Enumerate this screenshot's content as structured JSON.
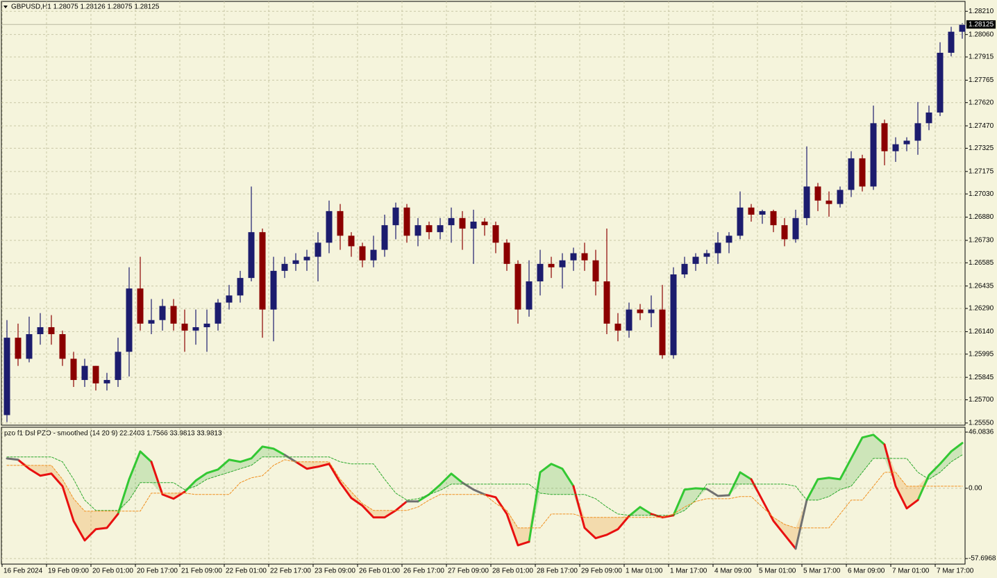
{
  "chart_data": [
    {
      "type": "candlestick",
      "title": "GBPUSD,H1  1.28075 1.28126 1.28075 1.28125",
      "categories": [
        "16 Feb 2024",
        null,
        null,
        null,
        "19 Feb 09:00",
        null,
        null,
        null,
        "20 Feb 01:00",
        null,
        null,
        null,
        "20 Feb 17:00",
        null,
        null,
        null,
        "21 Feb 09:00",
        null,
        null,
        null,
        "22 Feb 01:00",
        null,
        null,
        null,
        "22 Feb 17:00",
        null,
        null,
        null,
        "23 Feb 09:00",
        null,
        null,
        null,
        "26 Feb 01:00",
        null,
        null,
        null,
        "26 Feb 17:00",
        null,
        null,
        null,
        "27 Feb 09:00",
        null,
        null,
        null,
        "28 Feb 01:00",
        null,
        null,
        null,
        "28 Feb 17:00",
        null,
        null,
        null,
        "29 Feb 09:00",
        null,
        null,
        null,
        "1 Mar 01:00",
        null,
        null,
        null,
        "1 Mar 17:00",
        null,
        null,
        null,
        "4 Mar 09:00",
        null,
        null,
        null,
        "5 Mar 01:00",
        null,
        null,
        null,
        "5 Mar 17:00",
        null,
        null,
        null,
        "6 Mar 09:00",
        null,
        null,
        null,
        "7 Mar 01:00",
        null,
        null,
        null,
        "7 Mar 17:00",
        null,
        null
      ],
      "open": [
        1.25601,
        1.26101,
        1.25965,
        1.26124,
        1.26169,
        1.26124,
        1.25965,
        1.25828,
        1.25919,
        1.25806,
        1.25828,
        1.2601,
        1.26419,
        1.26192,
        1.26215,
        1.26306,
        1.26192,
        1.26147,
        1.26169,
        1.26192,
        1.26328,
        1.26374,
        1.26487,
        1.26783,
        1.26283,
        1.26533,
        1.26578,
        1.26601,
        1.26624,
        1.26715,
        1.26919,
        1.2676,
        1.26692,
        1.26601,
        1.26669,
        1.26828,
        1.26942,
        1.2676,
        1.26828,
        1.26783,
        1.26828,
        1.26874,
        1.26806,
        1.26851,
        1.26828,
        1.26715,
        1.26578,
        1.26283,
        1.26465,
        1.26578,
        1.26556,
        1.26601,
        1.26647,
        1.26601,
        1.26465,
        1.26192,
        1.26147,
        1.26283,
        1.2626,
        1.26283,
        1.25988,
        1.2651,
        1.26578,
        1.26624,
        1.26647,
        1.26715,
        1.2676,
        1.26942,
        1.26896,
        1.26919,
        1.26828,
        1.26737,
        1.26874,
        1.27078,
        1.26987,
        1.26965,
        1.27056,
        1.2726,
        1.27078,
        1.27487,
        1.27306,
        1.27351,
        1.27374,
        1.27487,
        1.27556,
        1.27942,
        1.28078
      ],
      "high": [
        1.26215,
        1.26192,
        1.26237,
        1.2626,
        1.26247,
        1.26147,
        1.2601,
        1.25965,
        1.25919,
        1.25874,
        1.26101,
        1.26556,
        1.26624,
        1.26351,
        1.26351,
        1.26351,
        1.26283,
        1.26283,
        1.26283,
        1.26351,
        1.26442,
        1.26533,
        1.27078,
        1.26806,
        1.26624,
        1.26624,
        1.26647,
        1.26669,
        1.26783,
        1.26987,
        1.26965,
        1.26783,
        1.26715,
        1.2676,
        1.26896,
        1.26974,
        1.26965,
        1.26874,
        1.26851,
        1.26874,
        1.26942,
        1.26919,
        1.26928,
        1.26874,
        1.26851,
        1.26737,
        1.26601,
        1.26601,
        1.26669,
        1.26624,
        1.26647,
        1.26683,
        1.26715,
        1.26669,
        1.26806,
        1.2626,
        1.26328,
        1.26319,
        1.26374,
        1.26442,
        1.26556,
        1.26624,
        1.26647,
        1.26669,
        1.26783,
        1.26783,
        1.27046,
        1.26965,
        1.26928,
        1.26928,
        1.26874,
        1.26928,
        1.27337,
        1.27101,
        1.27046,
        1.27078,
        1.27306,
        1.27283,
        1.27601,
        1.2751,
        1.27396,
        1.27396,
        1.27624,
        1.27601,
        1.2801,
        1.2811,
        1.28133
      ],
      "low": [
        1.25556,
        1.25919,
        1.25942,
        1.26056,
        1.26056,
        1.25919,
        1.25783,
        1.25783,
        1.2576,
        1.2576,
        1.25783,
        1.25851,
        1.26147,
        1.26124,
        1.26147,
        1.26147,
        1.2601,
        1.26056,
        1.2601,
        1.26147,
        1.26283,
        1.26328,
        1.26465,
        1.26101,
        1.26078,
        1.26487,
        1.26533,
        1.26533,
        1.26465,
        1.26647,
        1.26669,
        1.26624,
        1.26556,
        1.26556,
        1.26624,
        1.26737,
        1.26715,
        1.26692,
        1.26737,
        1.26737,
        1.26715,
        1.26669,
        1.26578,
        1.2676,
        1.26647,
        1.26533,
        1.26192,
        1.26237,
        1.26374,
        1.26487,
        1.26419,
        1.26533,
        1.26533,
        1.26374,
        1.26124,
        1.26078,
        1.26101,
        1.26215,
        1.26169,
        1.25965,
        1.25965,
        1.26487,
        1.26533,
        1.26578,
        1.26578,
        1.26647,
        1.26737,
        1.26851,
        1.26837,
        1.26783,
        1.26692,
        1.26715,
        1.26828,
        1.26919,
        1.26883,
        1.26942,
        1.2701,
        1.27046,
        1.27056,
        1.27215,
        1.27237,
        1.27306,
        1.27283,
        1.27442,
        1.27533,
        1.27919,
        1.28033
      ],
      "close": [
        1.26101,
        1.25965,
        1.26124,
        1.26169,
        1.26124,
        1.25965,
        1.25828,
        1.25919,
        1.25806,
        1.25828,
        1.2601,
        1.26419,
        1.26192,
        1.26215,
        1.26306,
        1.26192,
        1.26147,
        1.26169,
        1.26192,
        1.26328,
        1.26374,
        1.26487,
        1.26783,
        1.26283,
        1.26533,
        1.26578,
        1.26601,
        1.26624,
        1.26715,
        1.26919,
        1.2676,
        1.26692,
        1.26601,
        1.26669,
        1.26828,
        1.26942,
        1.2676,
        1.26828,
        1.26783,
        1.26828,
        1.26874,
        1.26806,
        1.26851,
        1.26828,
        1.26715,
        1.26578,
        1.26283,
        1.26465,
        1.26578,
        1.26556,
        1.26601,
        1.26647,
        1.26601,
        1.26465,
        1.26192,
        1.26147,
        1.26283,
        1.2626,
        1.26283,
        1.25988,
        1.2651,
        1.26578,
        1.26624,
        1.26647,
        1.26715,
        1.2676,
        1.26942,
        1.26896,
        1.26919,
        1.26828,
        1.26737,
        1.26874,
        1.27078,
        1.26987,
        1.26965,
        1.27056,
        1.2726,
        1.27078,
        1.27487,
        1.27306,
        1.27351,
        1.27374,
        1.27487,
        1.27556,
        1.27942,
        1.28078,
        1.28125
      ],
      "up_color": "#1c1c6e",
      "down_color": "#8b0000",
      "ylim": [
        1.25536,
        1.28274
      ],
      "yticks": [
        {
          "value": 1.2821,
          "label": "1.28210"
        },
        {
          "value": 1.2806,
          "label": "1.28060"
        },
        1.27915,
        1.27765,
        {
          "value": 1.2762,
          "label": "1.27620"
        },
        {
          "value": 1.2747,
          "label": "1.27470"
        },
        1.27325,
        1.27175,
        {
          "value": 1.2703,
          "label": "1.27030"
        },
        {
          "value": 1.2688,
          "label": "1.26880"
        },
        {
          "value": 1.2673,
          "label": "1.26730"
        },
        1.26585,
        1.26435,
        {
          "value": 1.2629,
          "label": "1.26290"
        },
        {
          "value": 1.2614,
          "label": "1.26140"
        },
        1.25995,
        1.25845,
        {
          "value": 1.257,
          "label": "1.25700"
        },
        {
          "value": 1.2555,
          "label": "1.25550"
        }
      ],
      "grid": true
    },
    {
      "type": "line",
      "title": "pzo f1 Dsl PZO - smoothed (14 20 9) 22.2403 1.7566 33.9813 33.9813",
      "series": [
        {
          "color": "#33c833",
          "values": [
            null,
            null,
            null,
            null,
            null,
            null,
            null,
            null,
            null,
            null,
            -21.1,
            7.4,
            30.2,
            21.7,
            null,
            null,
            -2.9,
            6.3,
            12.5,
            15.4,
            23.4,
            21.7,
            24.5,
            34.2,
            32.5,
            27.4,
            null,
            null,
            null,
            null,
            null,
            null,
            null,
            null,
            null,
            null,
            null,
            -10.8,
            -5.1,
            2.9,
            12,
            4.6,
            null,
            null,
            null,
            null,
            null,
            -43.9,
            13.1,
            20,
            16,
            1.7,
            null,
            null,
            null,
            null,
            -22.8,
            -15.4,
            -21.1,
            null,
            -22.2,
            -1.1,
            0,
            -0.6,
            null,
            -5.7,
            13.1,
            7.4,
            null,
            null,
            null,
            null,
            -9.7,
            7.4,
            8.6,
            7.4,
            24.5,
            41.6,
            43.9,
            35.9,
            null,
            null,
            -9.7,
            10.8,
            20,
            30.2,
            37.1
          ]
        },
        {
          "color": "#e81010",
          "values": [
            null,
            23.4,
            16,
            10.3,
            12,
            1.7,
            -26.8,
            -42.8,
            -33.6,
            -32.5,
            -21.1,
            null,
            null,
            21.7,
            -5.1,
            -8.6,
            -2.9,
            null,
            null,
            null,
            null,
            null,
            null,
            null,
            null,
            null,
            21.7,
            16,
            17.7,
            20,
            4.6,
            -8,
            -14.3,
            -23.9,
            -23.9,
            -18.2,
            -10.8,
            null,
            null,
            null,
            null,
            null,
            null,
            -5.1,
            -7.4,
            -21.1,
            -46.8,
            -43.9,
            null,
            null,
            null,
            1.7,
            -32.5,
            -41,
            -38.2,
            -33.6,
            -22.8,
            null,
            -21.1,
            -23.9,
            -22.2,
            null,
            null,
            null,
            null,
            null,
            null,
            7.4,
            -9.7,
            -26.8,
            -38.2,
            -49.6,
            null,
            null,
            null,
            null,
            null,
            null,
            null,
            35.9,
            1.7,
            -16.5,
            -9.7,
            null,
            null,
            null,
            null
          ]
        },
        {
          "color": "#707070",
          "values": [
            24.5,
            23.4,
            null,
            null,
            null,
            null,
            null,
            null,
            null,
            null,
            null,
            null,
            null,
            null,
            null,
            null,
            null,
            null,
            null,
            null,
            null,
            null,
            null,
            null,
            null,
            27.4,
            21.7,
            null,
            null,
            null,
            null,
            null,
            null,
            null,
            null,
            null,
            -10.8,
            -10.8,
            null,
            null,
            null,
            4.6,
            -1.1,
            -5.1,
            null,
            null,
            null,
            null,
            null,
            null,
            null,
            null,
            null,
            null,
            null,
            null,
            null,
            null,
            null,
            null,
            null,
            null,
            null,
            -0.6,
            -6.3,
            -5.7,
            null,
            null,
            null,
            null,
            null,
            -49.6,
            -9.7,
            null,
            null,
            null,
            null,
            null,
            null,
            null,
            null,
            null,
            null,
            null,
            null,
            null,
            null
          ]
        },
        {
          "color": "#2ca82c",
          "dash": true,
          "values": [
            25.7,
            25.7,
            25.7,
            25.7,
            25.7,
            21.7,
            7.4,
            -9.7,
            -18.2,
            -18.2,
            -18.2,
            -9.7,
            4.6,
            4.6,
            4.6,
            4.6,
            -1.1,
            1.7,
            7.4,
            10.3,
            13.1,
            16,
            18.8,
            25.7,
            25.7,
            25.7,
            25.7,
            25.7,
            25.7,
            25.7,
            21.7,
            20,
            20,
            20,
            7.4,
            -4,
            -9.7,
            -8.6,
            -5.1,
            -1.7,
            3.4,
            3.4,
            3.4,
            3.4,
            3.4,
            3.4,
            3.4,
            3.4,
            -4,
            -5.1,
            -5.1,
            -5.1,
            -5.1,
            -8.6,
            -15.4,
            -21.1,
            -22.2,
            -22.2,
            -22.2,
            -22.2,
            -22.2,
            -18.2,
            -9.7,
            3.4,
            3.4,
            3.4,
            3.4,
            3.4,
            3.4,
            3.4,
            3.4,
            1.7,
            -9.7,
            -9.7,
            -6.8,
            -1.1,
            1.7,
            13.1,
            24.5,
            24.5,
            24.5,
            24.5,
            13.1,
            7.4,
            13.1,
            21.7,
            27.4
          ]
        },
        {
          "color": "#f09020",
          "dash": true,
          "values": [
            18.8,
            18.8,
            18.8,
            18.8,
            18.8,
            7.4,
            -8.6,
            -18.8,
            -18.8,
            -18.8,
            -18.8,
            -18.8,
            -18.8,
            -4,
            -4,
            -4,
            -4,
            -5.1,
            -5.1,
            -5.1,
            -5.1,
            4.6,
            8.6,
            10.3,
            18.8,
            23.4,
            21.7,
            21.7,
            21.7,
            21.7,
            7.4,
            -2.9,
            -12.5,
            -18.2,
            -18.2,
            -18.2,
            -18.2,
            -15.4,
            -9.7,
            -5.1,
            -5.1,
            -5.1,
            -5.1,
            -5.1,
            -12.5,
            -18.2,
            -32.5,
            -32.5,
            -32.5,
            -21.1,
            -21.1,
            -21.1,
            -23.9,
            -23.9,
            -23.9,
            -23.9,
            -23.9,
            -23.9,
            -23.9,
            -23.9,
            -21.1,
            -15.4,
            -10.8,
            -8.6,
            -8.6,
            -8.6,
            -6.8,
            -6.8,
            -15.4,
            -23.9,
            -29.6,
            -32.5,
            -32.5,
            -32.5,
            -32.5,
            -21.1,
            -9.7,
            -9.7,
            1.7,
            13.1,
            13.1,
            1.7,
            1.7,
            1.7,
            1.7,
            1.7,
            1.7
          ]
        }
      ],
      "ylim": [
        -61.1,
        49.5
      ],
      "yticks": [
        46.0836,
        {
          "value": 0,
          "label": "0.00"
        },
        -57.6968
      ],
      "grid": true
    }
  ]
}
